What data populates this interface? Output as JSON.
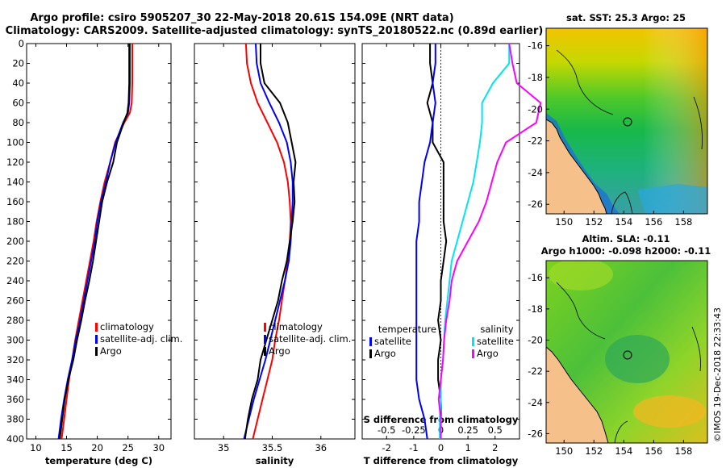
{
  "header": {
    "line1": "Argo profile: csiro 5905207_30 22-May-2018 20.61S 154.09E (NRT data)",
    "line2": "Climatology: CARS2009. Satellite-adjusted climatology: synTS_20180522.nc (0.89d earlier)"
  },
  "colors": {
    "clim": "#ff0000",
    "sat": "#0000ff",
    "argo": "#000000",
    "sat_s": "#00e5ee",
    "clim_s": "#ff00ff",
    "land": "#f5c08a"
  },
  "y_ticks": [
    "0",
    "20",
    "40",
    "60",
    "80",
    "100",
    "120",
    "140",
    "160",
    "180",
    "200",
    "220",
    "240",
    "260",
    "280",
    "300",
    "320",
    "340",
    "360",
    "380",
    "400"
  ],
  "chart_data": [
    {
      "type": "line",
      "id": "temperature",
      "xlabel": "temperature (deg C)",
      "x_ticks": [
        "10",
        "15",
        "20",
        "25",
        "30"
      ],
      "xlim": [
        8.5,
        32
      ],
      "ylim": [
        0,
        400
      ],
      "y_inverted": true,
      "depths": [
        0,
        40,
        60,
        70,
        80,
        100,
        120,
        140,
        160,
        180,
        200,
        220,
        240,
        260,
        280,
        300,
        320,
        340,
        360,
        380,
        400
      ],
      "series": [
        {
          "name": "climatology",
          "values": [
            25.7,
            25.7,
            25.6,
            25.3,
            24.4,
            22.9,
            22.1,
            21.2,
            20.5,
            19.9,
            19.4,
            18.8,
            18.2,
            17.6,
            17.0,
            16.4,
            15.9,
            15.4,
            15.0,
            14.6,
            14.2
          ]
        },
        {
          "name": "satellite-adj. clim.",
          "values": [
            25.3,
            25.3,
            25.2,
            25.0,
            24.2,
            23.0,
            22.1,
            21.4,
            20.6,
            20.0,
            19.6,
            19.0,
            18.4,
            17.8,
            17.2,
            16.5,
            15.9,
            15.2,
            14.6,
            14.1,
            13.7
          ]
        },
        {
          "name": "Argo",
          "values": [
            25.2,
            25.2,
            25.1,
            24.9,
            24.3,
            23.2,
            22.6,
            21.6,
            20.8,
            20.3,
            19.8,
            19.3,
            18.7,
            18.0,
            17.4,
            16.7,
            16.1,
            15.3,
            14.7,
            14.3,
            13.9
          ]
        }
      ],
      "legend": [
        "climatology",
        "satellite-adj. clim.",
        "Argo"
      ]
    },
    {
      "type": "line",
      "id": "salinity",
      "xlabel": "salinity",
      "x_ticks": [
        "35",
        "35.5",
        "36"
      ],
      "xlim": [
        34.7,
        36.35
      ],
      "ylim": [
        0,
        400
      ],
      "y_inverted": true,
      "depths": [
        0,
        20,
        40,
        60,
        80,
        100,
        120,
        140,
        160,
        180,
        200,
        220,
        240,
        260,
        280,
        300,
        320,
        340,
        360,
        380,
        400
      ],
      "series": [
        {
          "name": "climatology",
          "values": [
            35.23,
            35.24,
            35.28,
            35.35,
            35.45,
            35.55,
            35.62,
            35.66,
            35.68,
            35.69,
            35.68,
            35.66,
            35.63,
            35.6,
            35.57,
            35.53,
            35.5,
            35.45,
            35.4,
            35.35,
            35.3
          ]
        },
        {
          "name": "satellite-adj. clim.",
          "values": [
            35.33,
            35.34,
            35.38,
            35.47,
            35.57,
            35.65,
            35.69,
            35.71,
            35.71,
            35.7,
            35.69,
            35.67,
            35.63,
            35.58,
            35.53,
            35.48,
            35.43,
            35.37,
            35.31,
            35.26,
            35.21
          ]
        },
        {
          "name": "Argo",
          "values": [
            35.38,
            35.38,
            35.42,
            35.58,
            35.66,
            35.7,
            35.74,
            35.72,
            35.73,
            35.71,
            35.68,
            35.65,
            35.6,
            35.56,
            35.5,
            35.44,
            35.38,
            35.35,
            35.29,
            35.25,
            35.22
          ]
        }
      ],
      "legend": [
        "climatology",
        "satellite-adj. clim.",
        "Argo"
      ]
    },
    {
      "type": "line",
      "id": "difference",
      "xlabel": "T difference from climatology",
      "x_ticks": [
        "-2",
        "-1",
        "0",
        "1",
        "2"
      ],
      "top_label": "S difference from climatology",
      "top_ticks": [
        "-0.5",
        "-0.25",
        "0",
        "0.25",
        "0.5"
      ],
      "xlim": [
        -2.9,
        2.9
      ],
      "ylim": [
        0,
        400
      ],
      "y_inverted": true,
      "depths": [
        0,
        20,
        40,
        60,
        80,
        100,
        120,
        140,
        160,
        180,
        200,
        220,
        240,
        260,
        280,
        300,
        320,
        340,
        360,
        380,
        400
      ],
      "series": [
        {
          "name": "temperature Argo",
          "values": [
            -0.4,
            -0.4,
            -0.3,
            -0.5,
            -0.3,
            -0.3,
            0.1,
            0.1,
            0.1,
            0.1,
            0.2,
            0.1,
            0.0,
            0.0,
            -0.1,
            0.0,
            -0.1,
            -0.1,
            0.0,
            0.0,
            0.0
          ]
        },
        {
          "name": "temperature satellite",
          "values": [
            -0.2,
            -0.2,
            -0.3,
            -0.2,
            -0.3,
            -0.4,
            -0.6,
            -0.7,
            -0.8,
            -0.8,
            -0.9,
            -0.9,
            -0.9,
            -0.9,
            -0.9,
            -0.9,
            -0.9,
            -0.9,
            -0.8,
            -0.6,
            -0.5
          ]
        },
        {
          "name": "salinity satellite",
          "values": [
            0.63,
            0.63,
            0.48,
            0.38,
            0.38,
            0.36,
            0.33,
            0.3,
            0.25,
            0.2,
            0.15,
            0.1,
            0.08,
            0.06,
            0.04,
            0.03,
            0.02,
            0.0,
            0.0,
            -0.01,
            -0.01
          ]
        },
        {
          "name": "salinity Argo",
          "values": [
            0.63,
            0.66,
            0.7,
            0.92,
            0.88,
            0.6,
            0.52,
            0.47,
            0.42,
            0.35,
            0.25,
            0.15,
            0.1,
            0.08,
            0.05,
            0.03,
            0.02,
            0.0,
            -0.02,
            0.0,
            0.0
          ]
        }
      ],
      "legend_left_title": "temperature",
      "legend_left": [
        "satellite",
        "Argo"
      ],
      "legend_right_title": "salinity",
      "legend_right": [
        "satellite",
        "Argo"
      ]
    }
  ],
  "maps": {
    "sst": {
      "title": "sat. SST: 25.3 Argo: 25",
      "y_ticks": [
        "-16",
        "-18",
        "-20",
        "-22",
        "-24",
        "-26"
      ],
      "x_ticks": [
        "150",
        "152",
        "154",
        "156",
        "158"
      ]
    },
    "sla": {
      "title1": "Altim. SLA: -0.11",
      "title2": "Argo h1000: -0.098 h2000: -0.11",
      "y_ticks": [
        "-16",
        "-18",
        "-20",
        "-22",
        "-24",
        "-26"
      ],
      "x_ticks": [
        "150",
        "152",
        "154",
        "156",
        "158"
      ]
    }
  },
  "credit": "©IMOS 19-Dec-2018 22:33:43"
}
